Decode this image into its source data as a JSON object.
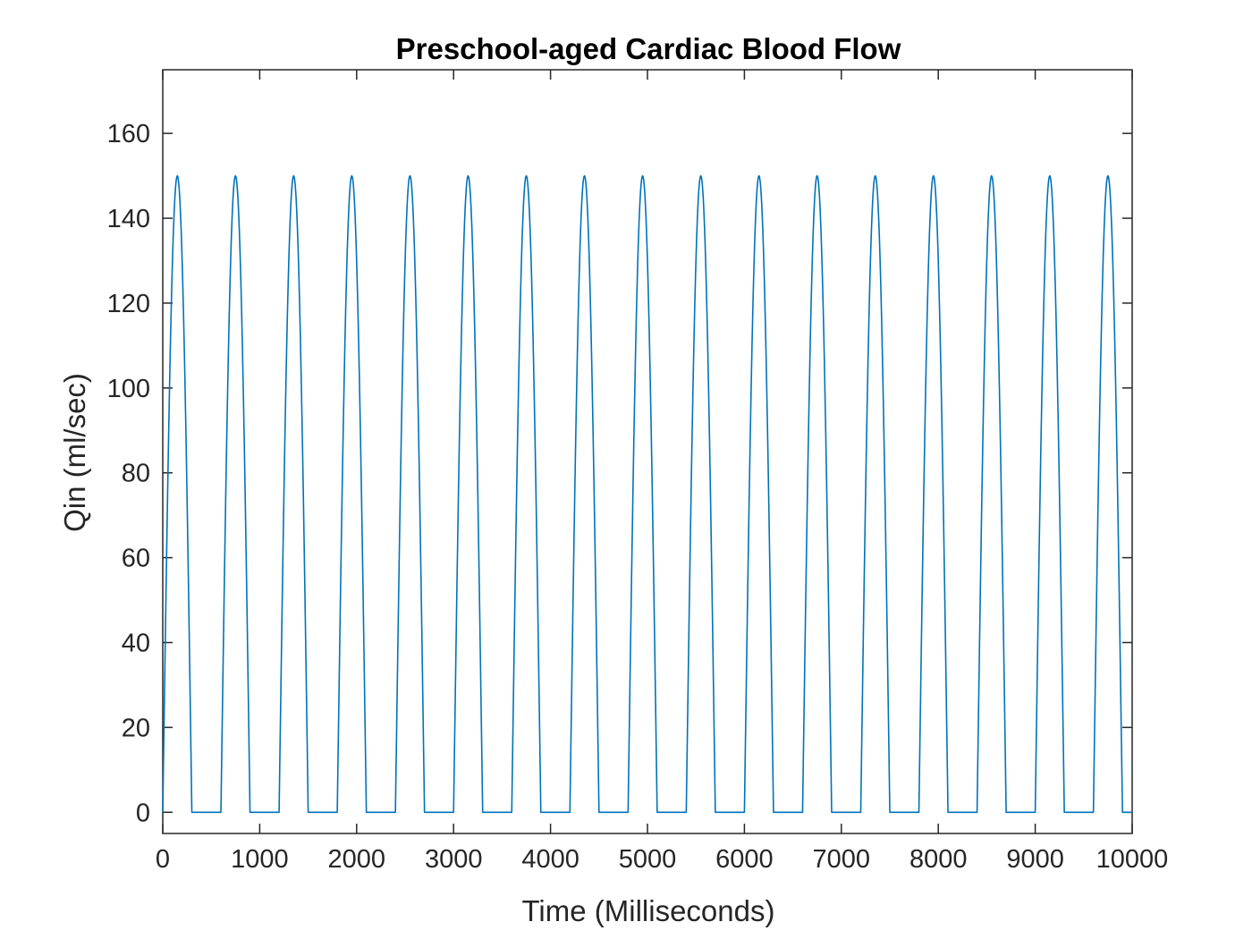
{
  "chart_data": {
    "type": "line",
    "title": "Preschool-aged Cardiac Blood Flow",
    "xlabel": "Time (Milliseconds)",
    "ylabel": "Qin (ml/sec)",
    "xlim": [
      0,
      10000
    ],
    "ylim": [
      -5,
      175
    ],
    "xticks": [
      0,
      1000,
      2000,
      3000,
      4000,
      5000,
      6000,
      7000,
      8000,
      9000,
      10000
    ],
    "yticks": [
      0,
      20,
      40,
      60,
      80,
      100,
      120,
      140,
      160
    ],
    "grid": false,
    "series": [
      {
        "color": "#0072BD",
        "waveform": "repeating systolic half-sine pulses",
        "period_ms": 600,
        "pulse_duration_ms": 300,
        "peak": 150,
        "baseline": 0,
        "pulse_starts_ms": [
          0,
          600,
          1200,
          1800,
          2400,
          3000,
          3600,
          4200,
          4800,
          5400,
          6000,
          6600,
          7200,
          7800,
          8400,
          9000,
          9600
        ],
        "peak_times_ms": [
          150,
          750,
          1350,
          1950,
          2550,
          3150,
          3750,
          4350,
          4950,
          5550,
          6150,
          6750,
          7350,
          7950,
          8550,
          9150,
          9750
        ],
        "x_end_ms": 10000
      }
    ]
  }
}
